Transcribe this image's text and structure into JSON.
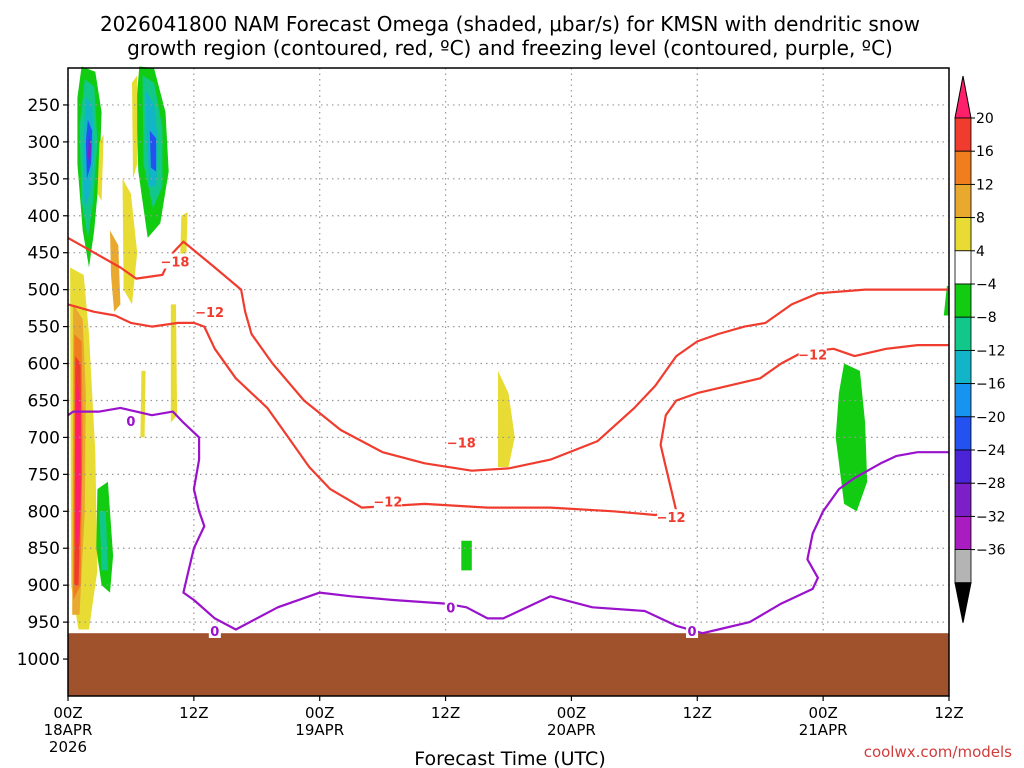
{
  "chart_data": {
    "type": "heatmap",
    "title_line1": "2026041800 NAM Forecast Omega (shaded, μbar/s) for KMSN with dendritic snow",
    "title_line2": "growth region (contoured, red, ºC) and freezing level (contoured, purple, ºC)",
    "xlabel": "Forecast Time (UTC)",
    "credit": "coolwx.com/models",
    "x_range_hours": [
      0,
      84
    ],
    "y_range_hpa": [
      1050,
      200
    ],
    "x_ticks": [
      {
        "hour": 0,
        "lines": [
          "00Z",
          "18APR",
          "2026"
        ]
      },
      {
        "hour": 12,
        "lines": [
          "12Z"
        ]
      },
      {
        "hour": 24,
        "lines": [
          "00Z",
          "19APR"
        ]
      },
      {
        "hour": 36,
        "lines": [
          "12Z"
        ]
      },
      {
        "hour": 48,
        "lines": [
          "00Z",
          "20APR"
        ]
      },
      {
        "hour": 60,
        "lines": [
          "12Z"
        ]
      },
      {
        "hour": 72,
        "lines": [
          "00Z",
          "21APR"
        ]
      },
      {
        "hour": 84,
        "lines": [
          "12Z"
        ]
      }
    ],
    "y_ticks": [
      "250",
      "300",
      "350",
      "400",
      "450",
      "500",
      "550",
      "600",
      "650",
      "700",
      "750",
      "800",
      "850",
      "900",
      "950",
      "1000"
    ],
    "colorbar": {
      "labels": [
        "20",
        "16",
        "12",
        "8",
        "4",
        "−4",
        "−8",
        "−12",
        "−16",
        "−20",
        "−24",
        "−28",
        "−32",
        "−36"
      ],
      "colors": [
        "#ff1f6b",
        "#f03c2e",
        "#f07d1e",
        "#e8a92e",
        "#e8dc34",
        "#ffffff",
        "#11cc11",
        "#11c88a",
        "#12b4c8",
        "#1793f0",
        "#2352f0",
        "#4b24d8",
        "#7d1fc9",
        "#a91cc0",
        "#b4b4b4",
        "#000000"
      ]
    },
    "omega_areas": [
      {
        "value": -10,
        "color": "#11cc11",
        "points": [
          [
            1.3,
            198
          ],
          [
            2.6,
            205
          ],
          [
            3.2,
            260
          ],
          [
            3.0,
            340
          ],
          [
            2.5,
            420
          ],
          [
            2.0,
            470
          ],
          [
            1.4,
            420
          ],
          [
            0.9,
            330
          ],
          [
            0.9,
            240
          ]
        ]
      },
      {
        "value": -14,
        "color": "#11c88a",
        "points": [
          [
            1.6,
            215
          ],
          [
            2.5,
            225
          ],
          [
            2.8,
            300
          ],
          [
            2.4,
            380
          ],
          [
            1.9,
            430
          ],
          [
            1.3,
            380
          ],
          [
            1.1,
            280
          ]
        ]
      },
      {
        "value": -18,
        "color": "#12b4c8",
        "points": [
          [
            1.7,
            240
          ],
          [
            2.3,
            250
          ],
          [
            2.5,
            310
          ],
          [
            2.1,
            370
          ],
          [
            1.6,
            390
          ],
          [
            1.4,
            320
          ]
        ]
      },
      {
        "value": -22,
        "color": "#2352f0",
        "points": [
          [
            1.9,
            270
          ],
          [
            2.3,
            285
          ],
          [
            2.2,
            330
          ],
          [
            1.8,
            350
          ],
          [
            1.7,
            300
          ]
        ]
      },
      {
        "value": -26,
        "color": "#7d1fc9",
        "points": [
          [
            2.0,
            290
          ],
          [
            2.2,
            305
          ],
          [
            2.1,
            330
          ],
          [
            1.9,
            320
          ]
        ]
      },
      {
        "value": -10,
        "color": "#11cc11",
        "points": [
          [
            6.8,
            198
          ],
          [
            8.2,
            200
          ],
          [
            9.3,
            260
          ],
          [
            9.6,
            340
          ],
          [
            8.8,
            410
          ],
          [
            7.6,
            430
          ],
          [
            6.7,
            340
          ],
          [
            6.5,
            250
          ]
        ]
      },
      {
        "value": -14,
        "color": "#11c88a",
        "points": [
          [
            7.1,
            210
          ],
          [
            8.2,
            220
          ],
          [
            9.0,
            280
          ],
          [
            9.0,
            360
          ],
          [
            8.1,
            390
          ],
          [
            7.2,
            330
          ]
        ]
      },
      {
        "value": -18,
        "color": "#12b4c8",
        "points": [
          [
            7.4,
            230
          ],
          [
            8.2,
            250
          ],
          [
            8.6,
            300
          ],
          [
            8.4,
            360
          ],
          [
            7.8,
            360
          ],
          [
            7.5,
            300
          ]
        ]
      },
      {
        "value": -22,
        "color": "#2352f0",
        "points": [
          [
            7.8,
            285
          ],
          [
            8.4,
            295
          ],
          [
            8.4,
            340
          ],
          [
            7.9,
            335
          ]
        ]
      },
      {
        "value": 6,
        "color": "#e8dc34",
        "points": [
          [
            3.0,
            300
          ],
          [
            3.4,
            290
          ],
          [
            3.2,
            380
          ],
          [
            2.8,
            370
          ]
        ]
      },
      {
        "value": 6,
        "color": "#e8dc34",
        "points": [
          [
            6.1,
            220
          ],
          [
            6.6,
            210
          ],
          [
            6.6,
            330
          ],
          [
            6.2,
            350
          ]
        ]
      },
      {
        "value": 6,
        "color": "#e8dc34",
        "points": [
          [
            5.2,
            350
          ],
          [
            6.0,
            370
          ],
          [
            6.6,
            450
          ],
          [
            6.1,
            520
          ],
          [
            5.3,
            500
          ]
        ]
      },
      {
        "value": 6,
        "color": "#e8dc34",
        "points": [
          [
            0.2,
            470
          ],
          [
            1.5,
            480
          ],
          [
            2.0,
            560
          ],
          [
            2.6,
            720
          ],
          [
            2.8,
            880
          ],
          [
            2.0,
            960
          ],
          [
            1.0,
            960
          ],
          [
            0.3,
            900
          ]
        ]
      },
      {
        "value": 10,
        "color": "#e8a92e",
        "points": [
          [
            0.5,
            520
          ],
          [
            1.4,
            540
          ],
          [
            1.7,
            640
          ],
          [
            1.6,
            800
          ],
          [
            1.1,
            940
          ],
          [
            0.4,
            940
          ]
        ]
      },
      {
        "value": 14,
        "color": "#f07d1e",
        "points": [
          [
            0.6,
            560
          ],
          [
            1.3,
            570
          ],
          [
            1.4,
            700
          ],
          [
            1.2,
            900
          ],
          [
            0.5,
            920
          ]
        ]
      },
      {
        "value": 18,
        "color": "#f03c2e",
        "points": [
          [
            0.7,
            590
          ],
          [
            1.2,
            600
          ],
          [
            1.3,
            750
          ],
          [
            1.0,
            900
          ],
          [
            0.6,
            900
          ]
        ]
      },
      {
        "value": 22,
        "color": "#ff1f6b",
        "points": [
          [
            0.8,
            620
          ],
          [
            1.2,
            650
          ],
          [
            1.2,
            800
          ],
          [
            0.9,
            860
          ],
          [
            0.7,
            820
          ]
        ]
      },
      {
        "value": 6,
        "color": "#e8a92e",
        "points": [
          [
            4.0,
            420
          ],
          [
            4.8,
            440
          ],
          [
            5.0,
            520
          ],
          [
            4.4,
            530
          ],
          [
            4.1,
            480
          ]
        ]
      },
      {
        "value": -10,
        "color": "#11cc11",
        "points": [
          [
            2.8,
            770
          ],
          [
            3.8,
            760
          ],
          [
            4.3,
            860
          ],
          [
            4.0,
            910
          ],
          [
            3.2,
            900
          ],
          [
            2.7,
            850
          ]
        ]
      },
      {
        "value": -14,
        "color": "#11c88a",
        "points": [
          [
            3.0,
            800
          ],
          [
            3.6,
            800
          ],
          [
            3.8,
            880
          ],
          [
            3.2,
            880
          ]
        ]
      },
      {
        "value": 6,
        "color": "#e8dc34",
        "points": [
          [
            10.8,
            400
          ],
          [
            11.4,
            395
          ],
          [
            11.3,
            450
          ],
          [
            10.7,
            460
          ]
        ]
      },
      {
        "value": 6,
        "color": "#e8dc34",
        "points": [
          [
            9.8,
            520
          ],
          [
            10.3,
            520
          ],
          [
            10.4,
            670
          ],
          [
            9.8,
            680
          ]
        ]
      },
      {
        "value": 6,
        "color": "#e8dc34",
        "points": [
          [
            7.0,
            610
          ],
          [
            7.4,
            610
          ],
          [
            7.3,
            700
          ],
          [
            6.9,
            700
          ]
        ]
      },
      {
        "value": 6,
        "color": "#e8dc34",
        "points": [
          [
            41.0,
            610
          ],
          [
            42.0,
            640
          ],
          [
            42.6,
            700
          ],
          [
            42.0,
            740
          ],
          [
            41.0,
            740
          ]
        ]
      },
      {
        "value": -10,
        "color": "#11cc11",
        "points": [
          [
            37.5,
            840
          ],
          [
            38.5,
            840
          ],
          [
            38.5,
            880
          ],
          [
            37.5,
            880
          ]
        ]
      },
      {
        "value": -10,
        "color": "#11cc11",
        "points": [
          [
            74.0,
            600
          ],
          [
            75.5,
            610
          ],
          [
            76.0,
            680
          ],
          [
            76.2,
            760
          ],
          [
            75.2,
            800
          ],
          [
            74.0,
            790
          ],
          [
            73.2,
            700
          ],
          [
            73.5,
            640
          ]
        ]
      },
      {
        "value": -10,
        "color": "#11cc11",
        "points": [
          [
            83.8,
            495
          ],
          [
            84.0,
            495
          ],
          [
            84.0,
            535
          ],
          [
            83.5,
            535
          ]
        ]
      }
    ],
    "isotherm_minus18": [
      [
        0,
        430
      ],
      [
        2.5,
        450
      ],
      [
        5.0,
        470
      ],
      [
        6.5,
        485
      ],
      [
        9.0,
        480
      ],
      [
        10.0,
        450
      ],
      [
        11.0,
        435
      ],
      [
        14.0,
        470
      ],
      [
        16.5,
        500
      ],
      [
        16.9,
        530
      ],
      [
        17.5,
        560
      ],
      [
        19.5,
        600
      ],
      [
        22.5,
        650
      ],
      [
        26.0,
        690
      ],
      [
        30.0,
        720
      ],
      [
        34.0,
        735
      ],
      [
        38.5,
        745
      ],
      [
        42.0,
        742
      ],
      [
        46.0,
        730
      ],
      [
        50.5,
        705
      ],
      [
        54.0,
        660
      ],
      [
        56.0,
        630
      ],
      [
        58.0,
        590
      ],
      [
        60.0,
        570
      ],
      [
        62.0,
        560
      ],
      [
        64.5,
        550
      ],
      [
        66.5,
        545
      ],
      [
        69.0,
        520
      ],
      [
        71.5,
        505
      ],
      [
        76.0,
        500
      ],
      [
        80.0,
        500
      ],
      [
        84.0,
        500
      ]
    ],
    "isotherm_minus12": [
      [
        0,
        520
      ],
      [
        2.5,
        530
      ],
      [
        4.5,
        535
      ],
      [
        6.0,
        545
      ],
      [
        8.0,
        550
      ],
      [
        10.5,
        545
      ],
      [
        12.0,
        545
      ],
      [
        13.0,
        550
      ],
      [
        14.0,
        580
      ],
      [
        16.0,
        620
      ],
      [
        19.0,
        660
      ],
      [
        21.0,
        700
      ],
      [
        23.0,
        740
      ],
      [
        25.0,
        770
      ],
      [
        28.0,
        795
      ],
      [
        34.0,
        790
      ],
      [
        40.0,
        795
      ],
      [
        46.0,
        795
      ],
      [
        52.0,
        800
      ],
      [
        56.0,
        805
      ],
      [
        58.0,
        800
      ],
      [
        57.5,
        770
      ],
      [
        57.0,
        740
      ],
      [
        56.5,
        710
      ],
      [
        57.0,
        670
      ],
      [
        58.0,
        650
      ],
      [
        60.0,
        640
      ],
      [
        63.0,
        630
      ],
      [
        66.0,
        620
      ],
      [
        68.0,
        600
      ],
      [
        70.0,
        585
      ],
      [
        73.0,
        580
      ],
      [
        75.0,
        590
      ],
      [
        78.0,
        580
      ],
      [
        81.0,
        575
      ],
      [
        84.0,
        575
      ]
    ],
    "isotherm_zero": [
      [
        0,
        670
      ],
      [
        0.5,
        665
      ],
      [
        3.0,
        665
      ],
      [
        5.0,
        660
      ],
      [
        6.5,
        665
      ],
      [
        8.0,
        670
      ],
      [
        10.0,
        665
      ],
      [
        11.0,
        680
      ],
      [
        12.5,
        700
      ],
      [
        12.5,
        730
      ],
      [
        12.0,
        770
      ],
      [
        12.5,
        800
      ],
      [
        13.0,
        820
      ],
      [
        12.0,
        850
      ],
      [
        11.5,
        880
      ],
      [
        11.0,
        910
      ],
      [
        12.0,
        920
      ],
      [
        14.0,
        945
      ],
      [
        16.0,
        960
      ],
      [
        20.0,
        930
      ],
      [
        24.0,
        910
      ],
      [
        27.0,
        915
      ],
      [
        31.0,
        920
      ],
      [
        36.0,
        925
      ],
      [
        38.0,
        930
      ],
      [
        40.0,
        945
      ],
      [
        41.5,
        945
      ],
      [
        43.0,
        935
      ],
      [
        46.0,
        915
      ],
      [
        50.0,
        930
      ],
      [
        55.0,
        935
      ],
      [
        58.0,
        955
      ],
      [
        60.5,
        965
      ],
      [
        62.0,
        960
      ],
      [
        65.0,
        950
      ],
      [
        68.0,
        925
      ],
      [
        71.0,
        905
      ],
      [
        71.5,
        890
      ],
      [
        70.5,
        865
      ],
      [
        71.0,
        830
      ],
      [
        72.0,
        800
      ],
      [
        73.5,
        770
      ],
      [
        75.0,
        755
      ],
      [
        77.5,
        735
      ],
      [
        79.0,
        725
      ],
      [
        81.0,
        720
      ],
      [
        84.0,
        720
      ]
    ],
    "contour_labels": [
      {
        "text": "−18",
        "hour": 10.2,
        "hpa": 462,
        "color": "#f03c2e"
      },
      {
        "text": "−12",
        "hour": 13.5,
        "hpa": 530,
        "color": "#f03c2e"
      },
      {
        "text": "−18",
        "hour": 37.5,
        "hpa": 707,
        "color": "#f03c2e"
      },
      {
        "text": "−12",
        "hour": 30.5,
        "hpa": 787,
        "color": "#f03c2e"
      },
      {
        "text": "−12",
        "hour": 57.5,
        "hpa": 808,
        "color": "#f03c2e"
      },
      {
        "text": "−12",
        "hour": 71.0,
        "hpa": 588,
        "color": "#f03c2e"
      },
      {
        "text": "0",
        "hour": 6.0,
        "hpa": 678,
        "color": "#9a12cc"
      },
      {
        "text": "0",
        "hour": 14.0,
        "hpa": 962,
        "color": "#9a12cc"
      },
      {
        "text": "0",
        "hour": 36.5,
        "hpa": 930,
        "color": "#9a12cc"
      },
      {
        "text": "0",
        "hour": 59.5,
        "hpa": 962,
        "color": "#9a12cc"
      }
    ],
    "surface_terrain": {
      "color": "#a0522d",
      "hpa_top": 965
    },
    "grid": true,
    "legend_placement": "right colorbar"
  }
}
